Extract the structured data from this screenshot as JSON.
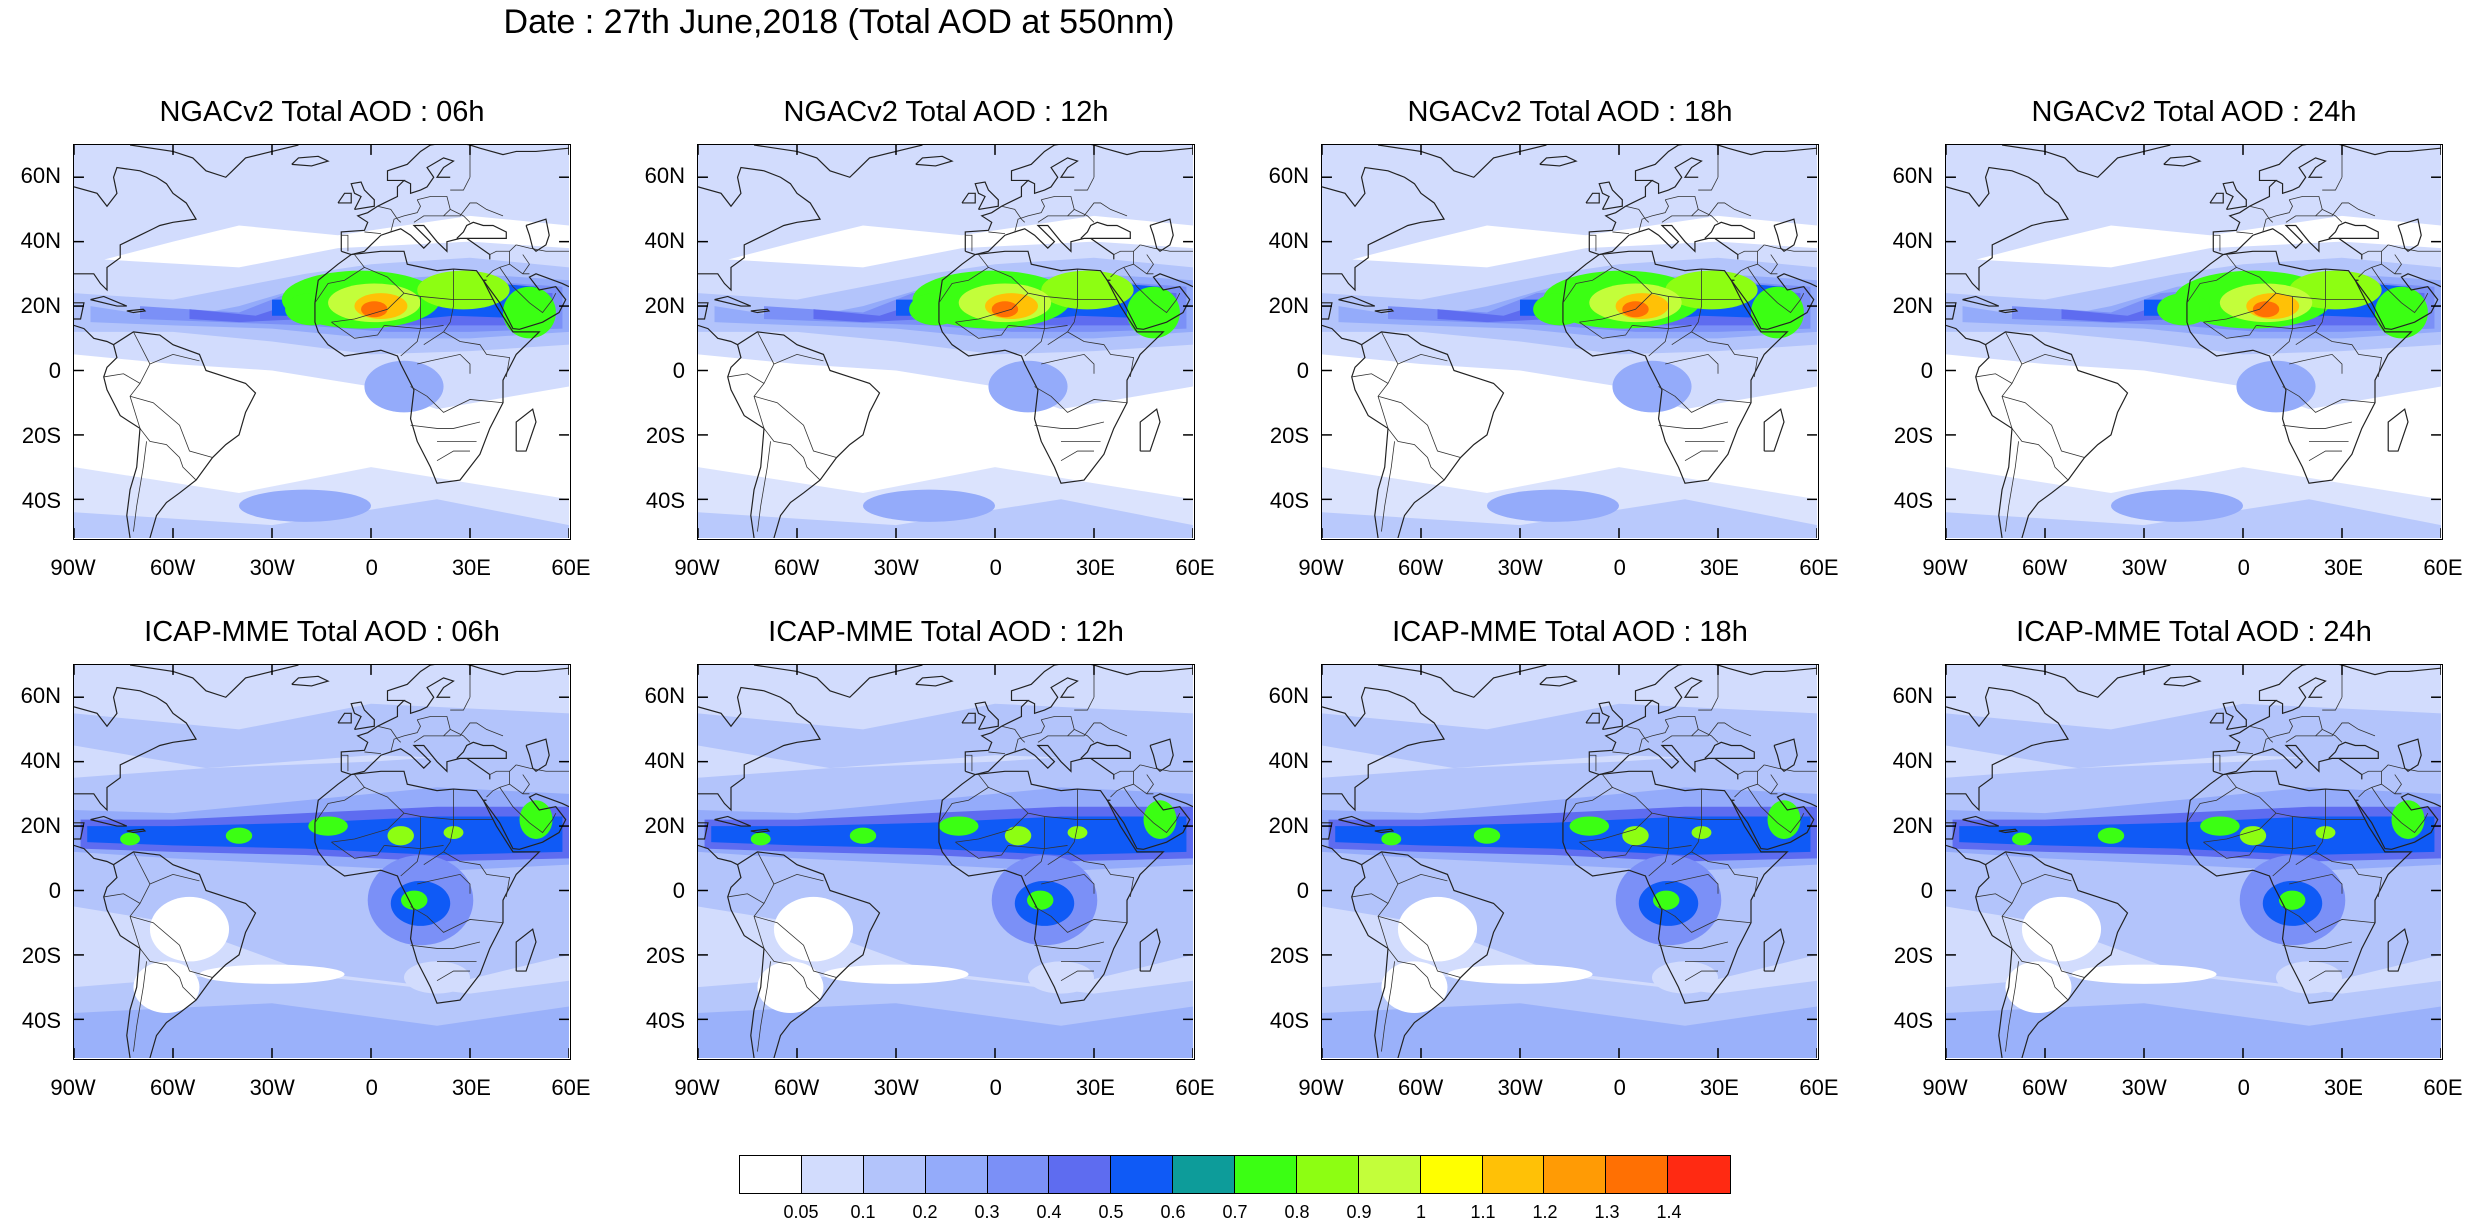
{
  "title": "Date : 27th June,2018 (Total AOD at 550nm)",
  "panels": [
    {
      "title": "NGACv2 Total AOD : 06h"
    },
    {
      "title": "NGACv2 Total AOD : 12h"
    },
    {
      "title": "NGACv2 Total AOD : 18h"
    },
    {
      "title": "NGACv2 Total AOD : 24h"
    },
    {
      "title": "ICAP-MME Total AOD : 06h"
    },
    {
      "title": "ICAP-MME Total AOD : 12h"
    },
    {
      "title": "ICAP-MME Total AOD : 18h"
    },
    {
      "title": "ICAP-MME Total AOD : 24h"
    }
  ],
  "lat_ticks": [
    "60N",
    "40N",
    "20N",
    "0",
    "20S",
    "40S"
  ],
  "lon_ticks": [
    "90W",
    "60W",
    "30W",
    "0",
    "30E",
    "60E"
  ],
  "colorbar": {
    "colors": [
      "#ffffff",
      "#d2dcfd",
      "#b3c4fb",
      "#94abfa",
      "#7b90f7",
      "#5e6cf0",
      "#0f5af6",
      "#0d9c9a",
      "#3bff13",
      "#8dfe12",
      "#c3fe3a",
      "#ffff00",
      "#ffc106",
      "#ff9b05",
      "#ff7003",
      "#ff2a12"
    ],
    "labels": [
      "0.05",
      "0.1",
      "0.2",
      "0.3",
      "0.4",
      "0.5",
      "0.6",
      "0.7",
      "0.8",
      "0.9",
      "1",
      "1.1",
      "1.2",
      "1.3",
      "1.4"
    ]
  }
}
